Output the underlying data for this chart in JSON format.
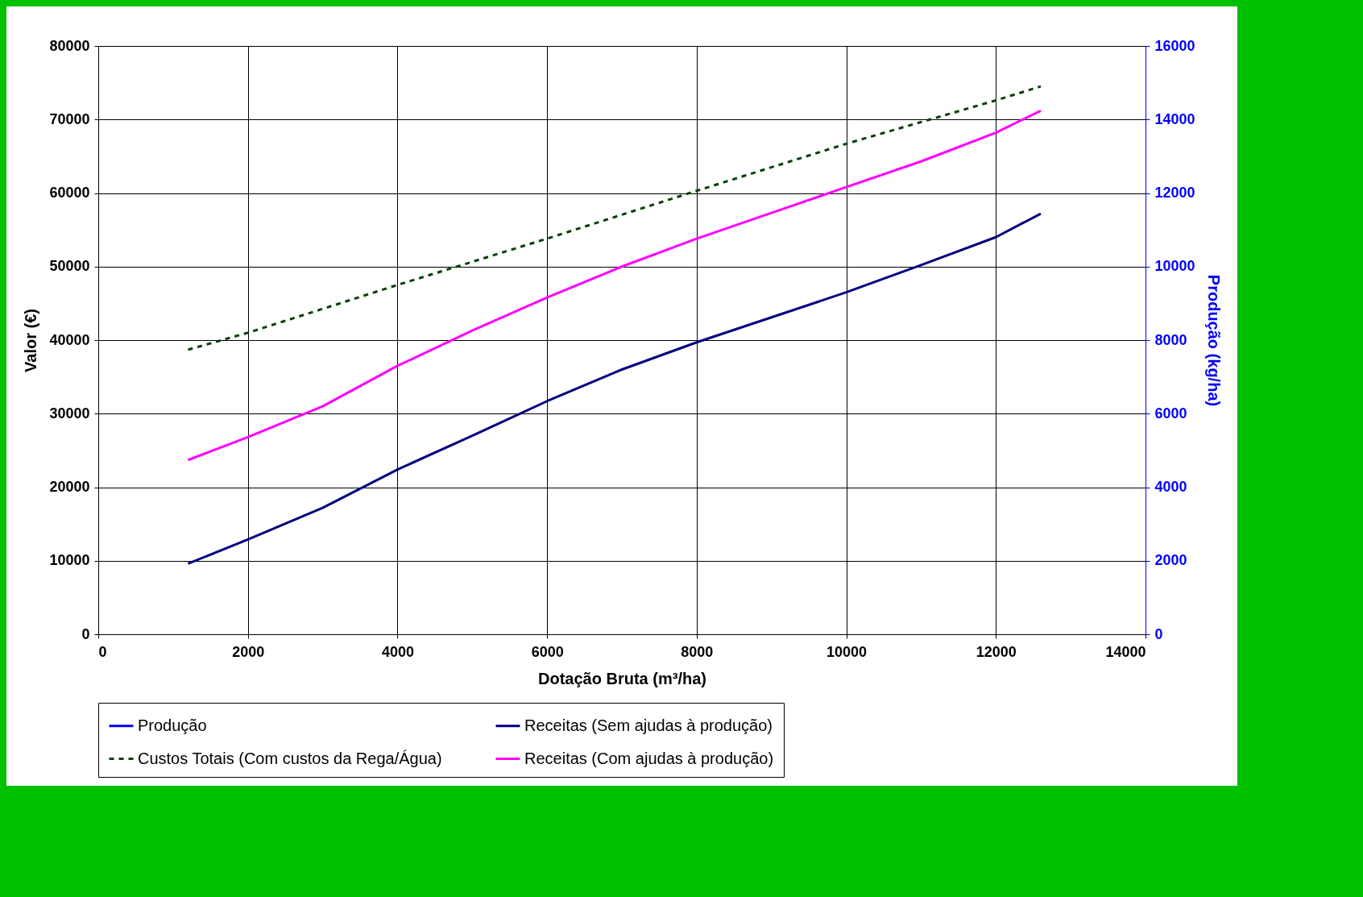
{
  "chart_data": {
    "type": "line",
    "xlabel": "Dotação Bruta (m³/ha)",
    "ylabel": "Valor (€)",
    "y2label": "Produção (kg/ha)",
    "xlim": [
      0,
      14000
    ],
    "xticks": [
      0,
      2000,
      4000,
      6000,
      8000,
      10000,
      12000,
      14000
    ],
    "ylim": [
      0,
      80000
    ],
    "yticks": [
      0,
      10000,
      20000,
      30000,
      40000,
      50000,
      60000,
      70000,
      80000
    ],
    "y2lim": [
      0,
      16000
    ],
    "y2ticks": [
      0,
      2000,
      4000,
      6000,
      8000,
      10000,
      12000,
      14000,
      16000
    ],
    "grid": true,
    "legend": "bottom",
    "series": [
      {
        "name": "Produção",
        "color": "#0000ff",
        "axis": "y2"
      },
      {
        "name": "Receitas (Sem ajudas à produção)",
        "color": "#000080",
        "x": [
          1200,
          2000,
          3000,
          4000,
          5000,
          6000,
          7000,
          8000,
          9000,
          10000,
          11000,
          12000,
          12600
        ],
        "values": [
          9600,
          12900,
          17200,
          22400,
          27000,
          31700,
          36000,
          39700,
          43100,
          46500,
          50200,
          54000,
          57200
        ]
      },
      {
        "name": "Custos Totais (Com custos da Rega/Água)",
        "color": "#004000",
        "line_style": "dashed",
        "x": [
          1200,
          2000,
          4000,
          6000,
          8000,
          10000,
          12000,
          12600
        ],
        "values": [
          38700,
          41000,
          47500,
          53800,
          60300,
          66700,
          72600,
          74500
        ]
      },
      {
        "name": "Receitas (Com ajudas à produção)",
        "color": "#ff00ff",
        "x": [
          1200,
          2000,
          3000,
          4000,
          5000,
          6000,
          7000,
          8000,
          9000,
          10000,
          11000,
          12000,
          12600
        ],
        "values": [
          23700,
          26800,
          31000,
          36500,
          41300,
          45800,
          50000,
          53800,
          57300,
          60800,
          64300,
          68200,
          71200
        ]
      }
    ]
  }
}
